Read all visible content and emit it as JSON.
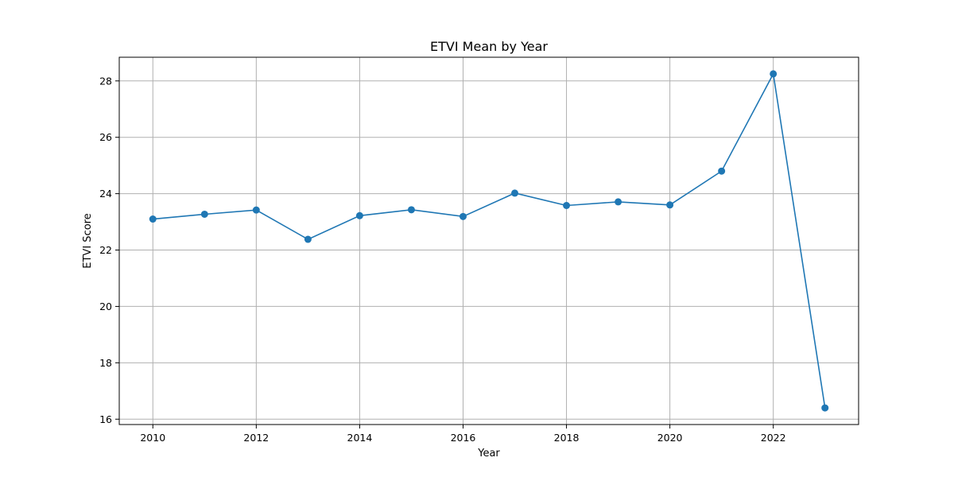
{
  "chart_data": {
    "type": "line",
    "title": "ETVI Mean by Year",
    "xlabel": "Year",
    "ylabel": "ETVI Score",
    "x": [
      2010,
      2011,
      2012,
      2013,
      2014,
      2015,
      2016,
      2017,
      2018,
      2019,
      2020,
      2021,
      2022,
      2023
    ],
    "series": [
      {
        "values": [
          23.1,
          23.27,
          23.42,
          22.38,
          23.22,
          23.43,
          23.19,
          24.02,
          23.58,
          23.71,
          23.6,
          24.8,
          28.25,
          16.4
        ]
      }
    ],
    "xticks": [
      "2010",
      "2012",
      "2014",
      "2016",
      "2018",
      "2020",
      "2022"
    ],
    "yticks": [
      "16",
      "18",
      "20",
      "22",
      "24",
      "26",
      "28"
    ],
    "xlim": [
      2009.35,
      2023.65
    ],
    "ylim": [
      15.81,
      28.84
    ],
    "grid": true,
    "legend": false,
    "line_color": "#1f77b4",
    "marker": "circle"
  }
}
